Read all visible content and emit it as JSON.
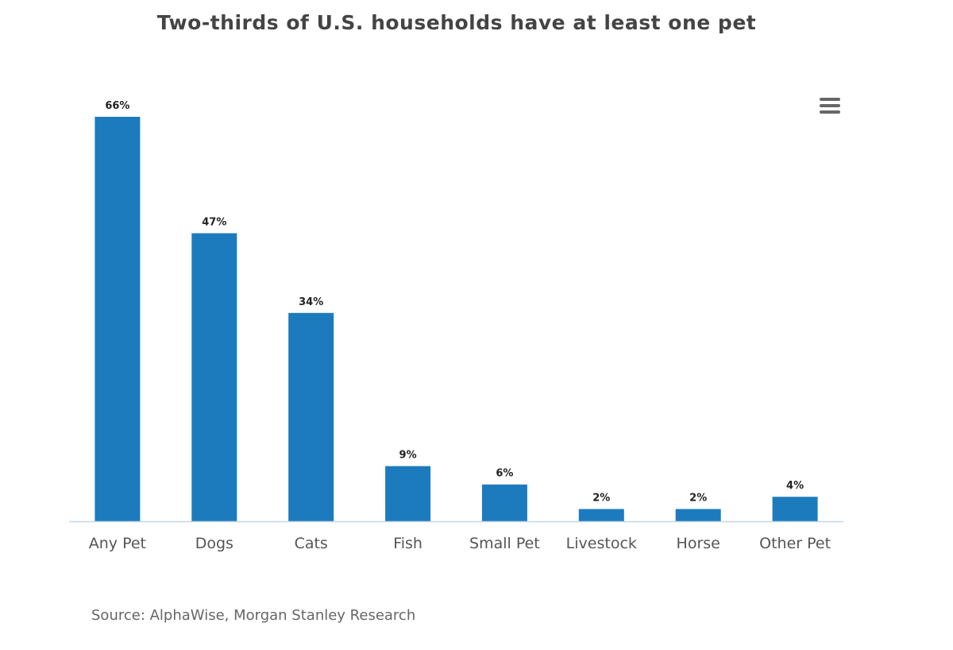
{
  "chart_data": {
    "type": "bar",
    "title": "Two-thirds of U.S. households have at least one pet",
    "categories": [
      "Any Pet",
      "Dogs",
      "Cats",
      "Fish",
      "Small Pet",
      "Livestock",
      "Horse",
      "Other Pet"
    ],
    "values": [
      66,
      47,
      34,
      9,
      6,
      2,
      2,
      4
    ],
    "data_labels": [
      "66%",
      "47%",
      "34%",
      "9%",
      "6%",
      "2%",
      "2%",
      "4%"
    ],
    "xlabel": "",
    "ylabel": "",
    "ylim": [
      0,
      66
    ],
    "grid": false,
    "legend": "none",
    "colors": {
      "bar": "#1c7bbd",
      "axis": "#c5d6ea"
    }
  },
  "source": "Source: AlphaWise, Morgan Stanley Research",
  "menu_icon": "hamburger-menu-icon"
}
